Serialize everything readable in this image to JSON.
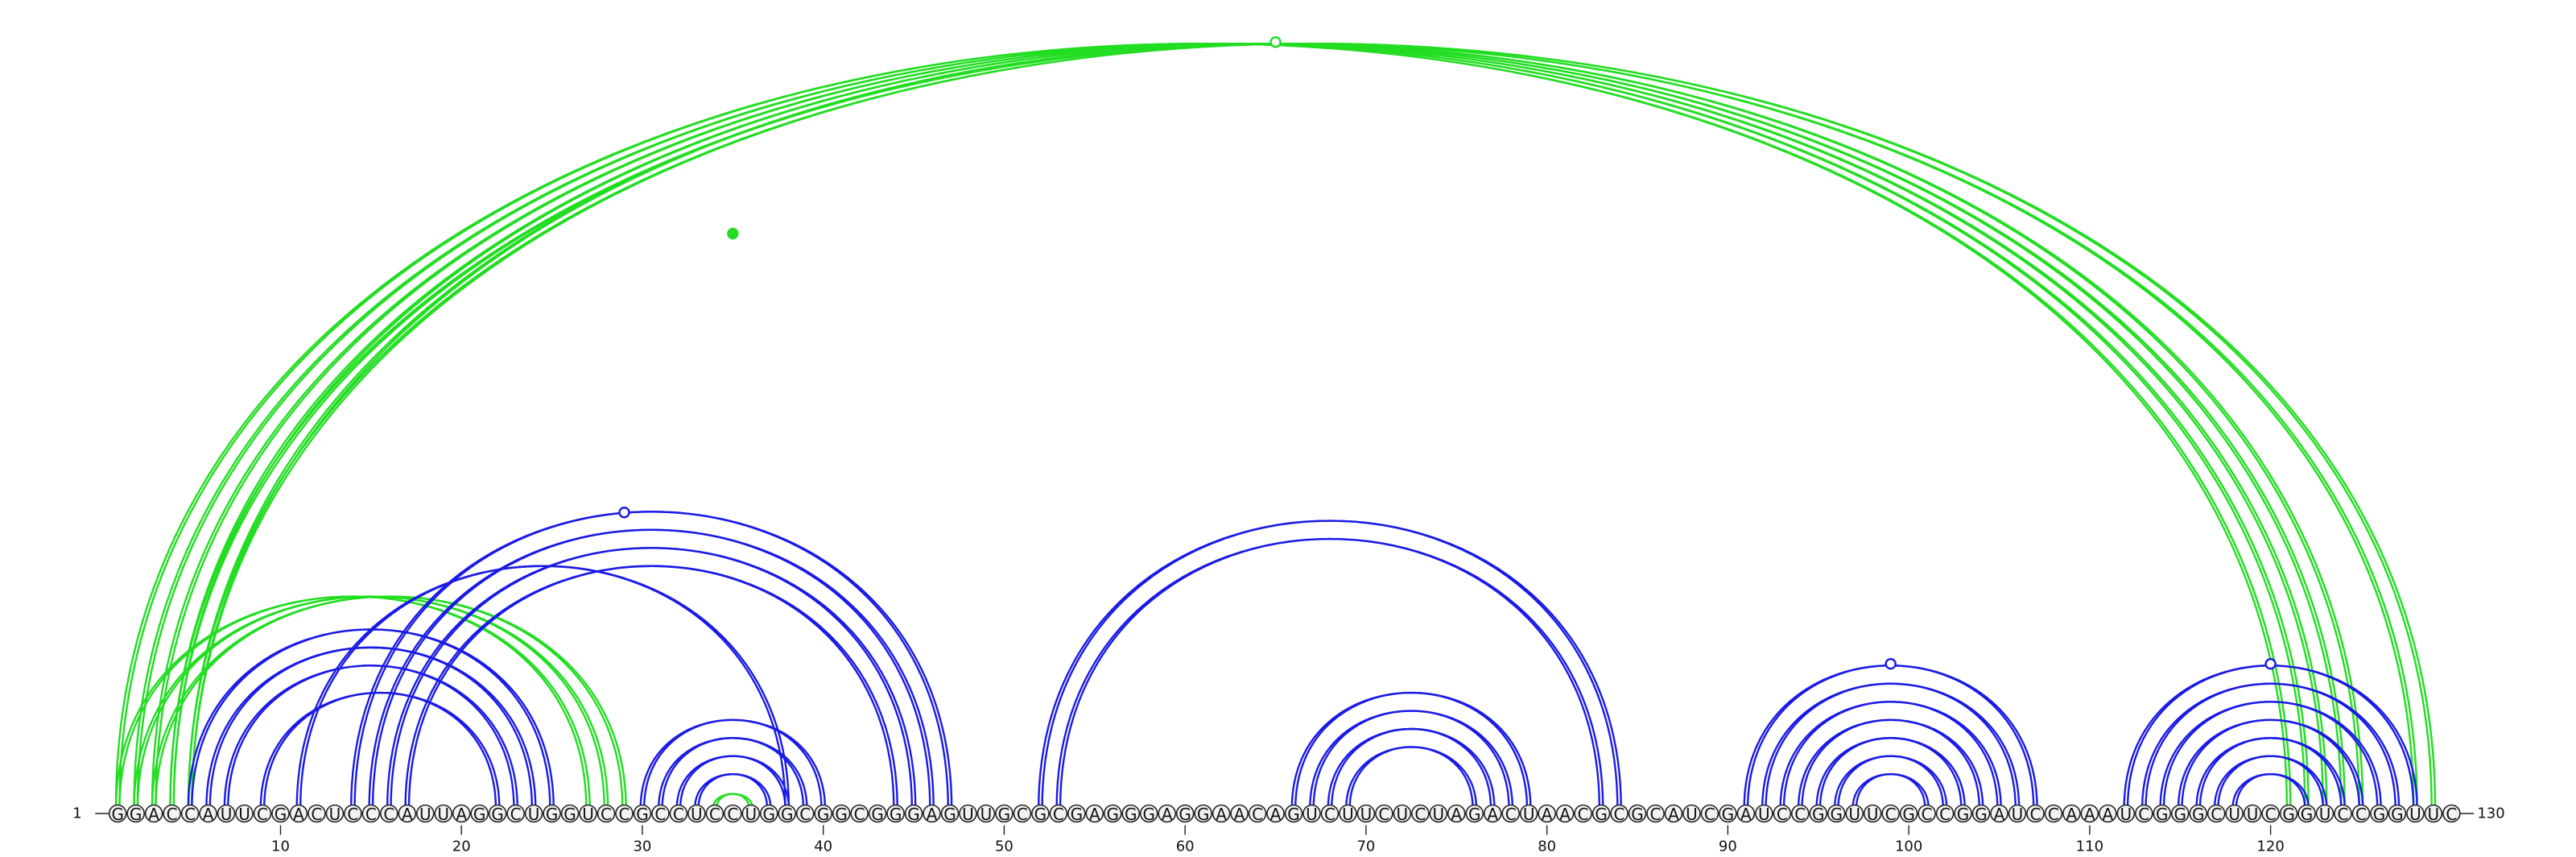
{
  "sequence": "GGACCAUUCGACUCCCAUUAGGCUGGUCCGCCUCCUGGCGGCGGGAGUUGCGCGAGGGAGGAACAGUCUUCUCUAGACUAACGCGCAUCGAUCCGGUUCGCCGGAUCCAAAUCGGGCUUCGGUCCGGUUC",
  "start_label": "1",
  "end_label": "130",
  "tick_positions": [
    10,
    20,
    30,
    40,
    50,
    60,
    70,
    80,
    90,
    100,
    110,
    120
  ],
  "colors": {
    "upper_arcs": "#22dd22",
    "lower_arcs": "#1a1ae6",
    "nucleotide_fill": "#f2f2f2",
    "nucleotide_stroke": "#222222",
    "backbone": "#222222"
  },
  "upper_arcs": [
    {
      "i": 1,
      "j": 121
    },
    {
      "i": 2,
      "j": 122
    },
    {
      "i": 3,
      "j": 123
    },
    {
      "i": 4,
      "j": 124
    },
    {
      "i": 5,
      "j": 125
    },
    {
      "i": 4,
      "j": 128
    },
    {
      "i": 5,
      "j": 129
    },
    {
      "i": 1,
      "j": 27
    },
    {
      "i": 2,
      "j": 28
    },
    {
      "i": 3,
      "j": 29
    },
    {
      "i": 34,
      "j": 36
    }
  ],
  "lower_arcs": [
    {
      "i": 5,
      "j": 25
    },
    {
      "i": 6,
      "j": 24
    },
    {
      "i": 7,
      "j": 23
    },
    {
      "i": 9,
      "j": 22
    },
    {
      "i": 11,
      "j": 38
    },
    {
      "i": 14,
      "j": 47
    },
    {
      "i": 15,
      "j": 46
    },
    {
      "i": 16,
      "j": 45
    },
    {
      "i": 17,
      "j": 44
    },
    {
      "i": 30,
      "j": 40
    },
    {
      "i": 31,
      "j": 39
    },
    {
      "i": 32,
      "j": 38
    },
    {
      "i": 33,
      "j": 37
    },
    {
      "i": 52,
      "j": 84
    },
    {
      "i": 53,
      "j": 83
    },
    {
      "i": 66,
      "j": 79
    },
    {
      "i": 67,
      "j": 78
    },
    {
      "i": 68,
      "j": 77
    },
    {
      "i": 69,
      "j": 76
    },
    {
      "i": 91,
      "j": 107
    },
    {
      "i": 92,
      "j": 106
    },
    {
      "i": 93,
      "j": 105
    },
    {
      "i": 94,
      "j": 104
    },
    {
      "i": 95,
      "j": 103
    },
    {
      "i": 96,
      "j": 102
    },
    {
      "i": 97,
      "j": 101
    },
    {
      "i": 112,
      "j": 128
    },
    {
      "i": 113,
      "j": 127
    },
    {
      "i": 114,
      "j": 126
    },
    {
      "i": 115,
      "j": 125
    },
    {
      "i": 116,
      "j": 124
    },
    {
      "i": 117,
      "j": 123
    },
    {
      "i": 118,
      "j": 122
    }
  ],
  "arc_markers": [
    {
      "position": 65,
      "row": "upper",
      "filled": false
    },
    {
      "position": 29,
      "row": "lower",
      "filled": false
    },
    {
      "position": 35,
      "row": "upper",
      "filled": true
    },
    {
      "position": 99,
      "row": "lower",
      "filled": false
    },
    {
      "position": 120,
      "row": "lower",
      "filled": false
    }
  ]
}
